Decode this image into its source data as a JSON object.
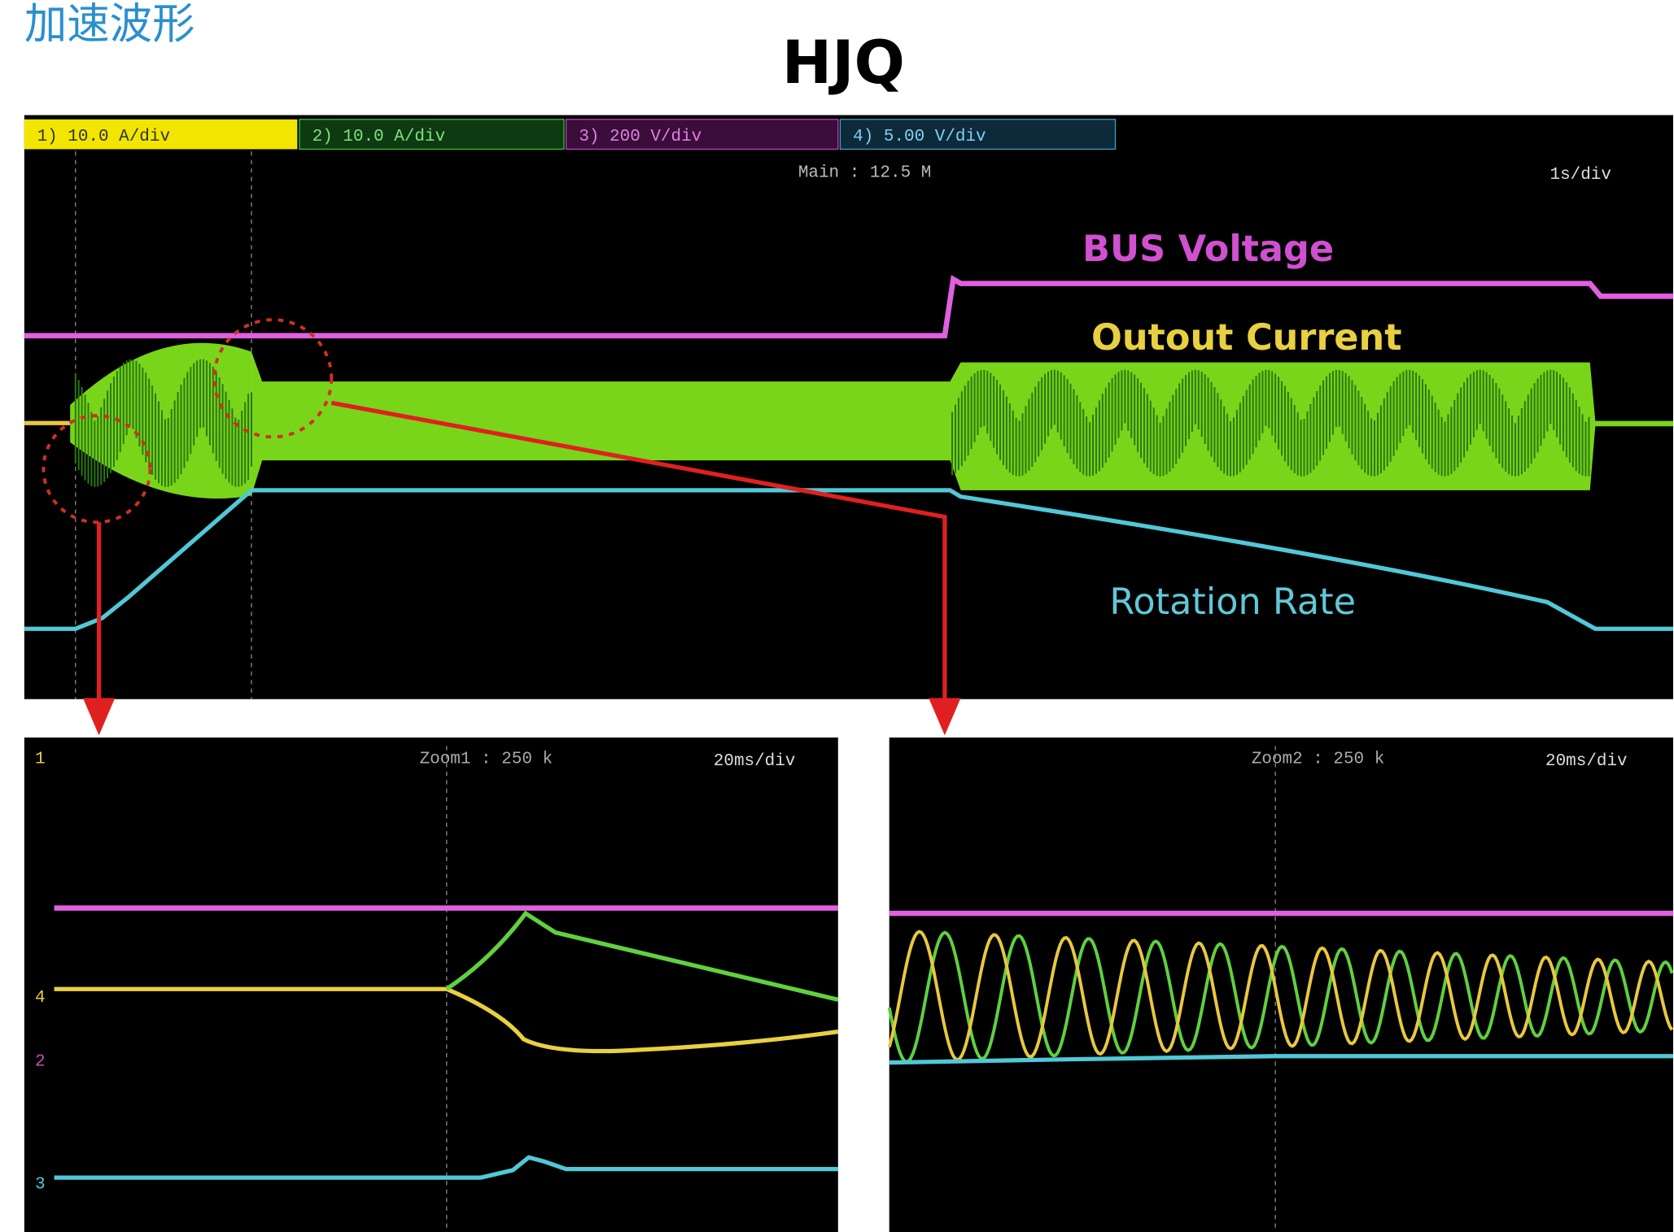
{
  "header": {
    "title": "加速波形",
    "subtitle": "HJQ"
  },
  "main_scope": {
    "channels": [
      "1) 10.0 A/div",
      "2) 10.0 A/div",
      "3) 200 V/div",
      "4) 5.00 V/div"
    ],
    "sample_rate": "Main : 12.5 M",
    "timebase": "1s/div",
    "annotations": {
      "bus_voltage": "BUS Voltage",
      "output_current": "Outout Current",
      "rotation_rate": "Rotation Rate"
    }
  },
  "zoom1": {
    "label": "Zoom1 : 250 k",
    "timebase": "20ms/div",
    "channel_markers": [
      "1",
      "4",
      "2",
      "3"
    ]
  },
  "zoom2": {
    "label": "Zoom2 : 250 k",
    "timebase": "20ms/div"
  }
}
